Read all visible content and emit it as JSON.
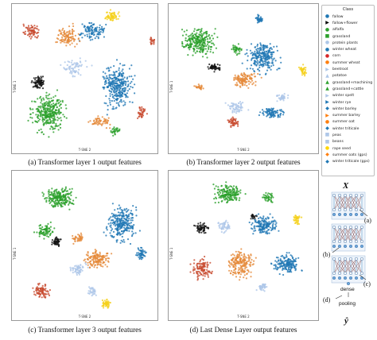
{
  "panels": [
    {
      "caption": "(a) Transformer layer 1 output features",
      "xlabel": "T-SNE 2",
      "ylabel": "T-SNE 1"
    },
    {
      "caption": "(b) Transformer layer 2 output features",
      "xlabel": "T-SNE 2",
      "ylabel": "T-SNE 1"
    },
    {
      "caption": "(c) Transformer layer 3 output features",
      "xlabel": "T-SNE 2",
      "ylabel": "T-SNE 1"
    },
    {
      "caption": "(d) Last Dense Layer output features",
      "xlabel": "T-SNE 2",
      "ylabel": "T-SNE 1"
    }
  ],
  "legend": {
    "title": "Class",
    "items": [
      {
        "label": "fallow",
        "color": "#1f77b4",
        "marker": "●"
      },
      {
        "label": "fallow+flower",
        "color": "#000000",
        "marker": "▶"
      },
      {
        "label": "alfalfa",
        "color": "#2ca02c",
        "marker": "●"
      },
      {
        "label": "grassland",
        "color": "#2ca02c",
        "marker": "■"
      },
      {
        "label": "protein plants",
        "color": "#aec7e8",
        "marker": "●"
      },
      {
        "label": "winter wheat",
        "color": "#1f77b4",
        "marker": "●"
      },
      {
        "label": "corn",
        "color": "#d62728",
        "marker": "●"
      },
      {
        "label": "summer wheat",
        "color": "#ff7f0e",
        "marker": "●"
      },
      {
        "label": "beetroot",
        "color": "#aec7e8",
        "marker": "▶"
      },
      {
        "label": "potatoe",
        "color": "#aec7e8",
        "marker": "▲"
      },
      {
        "label": "grassland+machining",
        "color": "#2ca02c",
        "marker": "▲"
      },
      {
        "label": "grassland+cattle",
        "color": "#2ca02c",
        "marker": "▲"
      },
      {
        "label": "winter spelt",
        "color": "#aec7e8",
        "marker": "▶"
      },
      {
        "label": "winter rye",
        "color": "#1f77b4",
        "marker": "▶"
      },
      {
        "label": "winter barley",
        "color": "#1f77b4",
        "marker": "◆"
      },
      {
        "label": "summer barley",
        "color": "#ff7f0e",
        "marker": "▶"
      },
      {
        "label": "summer oat",
        "color": "#ff7f0e",
        "marker": "●"
      },
      {
        "label": "winter triticale",
        "color": "#1f77b4",
        "marker": "◆"
      },
      {
        "label": "peas",
        "color": "#aec7e8",
        "marker": "■"
      },
      {
        "label": "beans",
        "color": "#aec7e8",
        "marker": "■"
      },
      {
        "label": "rape seed",
        "color": "#ffd700",
        "marker": "●"
      },
      {
        "label": "summer oats (gps)",
        "color": "#ff7f0e",
        "marker": "◆"
      },
      {
        "label": "winter triticale (gps)",
        "color": "#1f77b4",
        "marker": "◆"
      }
    ]
  },
  "diagram": {
    "input_symbol": "X",
    "output_symbol": "ŷ",
    "labels": [
      "(a)",
      "(b)",
      "(c)",
      "(d)"
    ],
    "dense_label": "dense",
    "pooling_label": "pooling"
  },
  "colors": {
    "blue": "#1f77b4",
    "green": "#2ca02c",
    "orange": "#e58a3a",
    "red": "#c84b2f",
    "black": "#111111",
    "lightblue": "#aec7e8",
    "yellow": "#f5d11b"
  }
}
